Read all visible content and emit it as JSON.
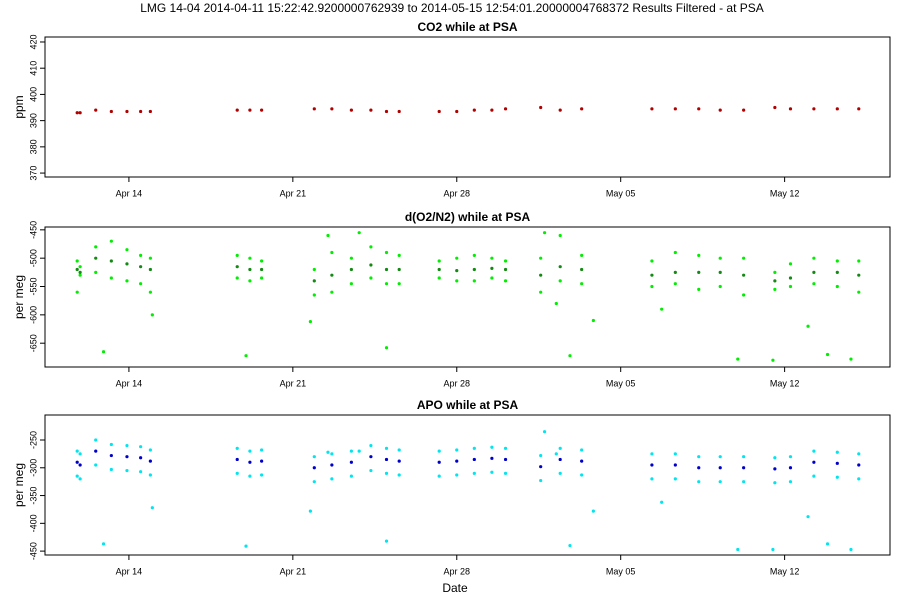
{
  "title": "LMG   14-04    2014-04-11 15:22:42.9200000762939 to 2014-05-15 12:54:01.20000004768372   Results Filtered - at PSA",
  "xlabel": "Date",
  "chart_data": [
    {
      "type": "scatter",
      "title": "CO2 while at PSA",
      "ylabel": "ppm",
      "xlim": [
        "2014-04-10T10:00",
        "2014-05-16T12:00"
      ],
      "xticks": [
        {
          "value": "2014-04-14T00:00",
          "label": "Apr 14"
        },
        {
          "value": "2014-04-21T00:00",
          "label": "Apr 21"
        },
        {
          "value": "2014-04-28T00:00",
          "label": "Apr 28"
        },
        {
          "value": "2014-05-05T00:00",
          "label": "May 05"
        },
        {
          "value": "2014-05-12T00:00",
          "label": "May 12"
        }
      ],
      "ylim": [
        368.5,
        421.9
      ],
      "yticks": [
        370,
        380,
        390,
        400,
        410,
        420
      ],
      "series": [
        {
          "color": "#b00000",
          "x": [
            "2014-04-11T19:00",
            "2014-04-11T22:00",
            "2014-04-12T14:00",
            "2014-04-13T06:00",
            "2014-04-13T22:00",
            "2014-04-14T12:00",
            "2014-04-14T22:00",
            "2014-04-18T15:00",
            "2014-04-19T04:00",
            "2014-04-19T16:00",
            "2014-04-21T22:00",
            "2014-04-22T16:00",
            "2014-04-23T12:00",
            "2014-04-24T08:00",
            "2014-04-25T00:00",
            "2014-04-25T13:00",
            "2014-04-27T06:00",
            "2014-04-28T00:00",
            "2014-04-28T18:00",
            "2014-04-29T12:00",
            "2014-04-30T02:00",
            "2014-05-01T14:00",
            "2014-05-02T10:00",
            "2014-05-03T08:00",
            "2014-05-06T08:00",
            "2014-05-07T08:00",
            "2014-05-08T08:00",
            "2014-05-09T06:00",
            "2014-05-10T06:00",
            "2014-05-11T14:00",
            "2014-05-12T06:00",
            "2014-05-13T06:00",
            "2014-05-14T06:00",
            "2014-05-15T04:00"
          ],
          "values": [
            393,
            393,
            394,
            393.5,
            393.5,
            393.5,
            393.5,
            394,
            394,
            394,
            394.5,
            394.5,
            394,
            394,
            393.5,
            393.5,
            393.5,
            393.5,
            394,
            394,
            394.5,
            395,
            394,
            394.5,
            394.5,
            394.5,
            394.5,
            394,
            394,
            395,
            394.5,
            394.5,
            394.5,
            394.5
          ]
        }
      ]
    },
    {
      "type": "scatter",
      "title": "d(O2/N2) while at PSA",
      "ylabel": "per meg",
      "xlim": [
        "2014-04-10T10:00",
        "2014-05-16T12:00"
      ],
      "xticks": [
        {
          "value": "2014-04-14T00:00",
          "label": "Apr 14"
        },
        {
          "value": "2014-04-21T00:00",
          "label": "Apr 21"
        },
        {
          "value": "2014-04-28T00:00",
          "label": "Apr 28"
        },
        {
          "value": "2014-05-05T00:00",
          "label": "May 05"
        },
        {
          "value": "2014-05-12T00:00",
          "label": "May 12"
        }
      ],
      "ylim": [
        -692,
        -445
      ],
      "yticks": [
        -450,
        -500,
        -550,
        -600,
        -650
      ],
      "series": [
        {
          "color": "#00ee00",
          "x": [
            "2014-04-11T19:00",
            "2014-04-11T22:00",
            "2014-04-12T14:00",
            "2014-04-13T06:00",
            "2014-04-13T22:00",
            "2014-04-14T12:00",
            "2014-04-14T22:00",
            "2014-04-18T15:00",
            "2014-04-19T04:00",
            "2014-04-19T16:00",
            "2014-04-21T22:00",
            "2014-04-22T16:00",
            "2014-04-23T12:00",
            "2014-04-24T08:00",
            "2014-04-25T00:00",
            "2014-04-25T13:00",
            "2014-04-27T06:00",
            "2014-04-28T00:00",
            "2014-04-28T18:00",
            "2014-04-29T12:00",
            "2014-04-30T02:00",
            "2014-05-01T14:00",
            "2014-05-02T10:00",
            "2014-05-03T08:00",
            "2014-05-06T08:00",
            "2014-05-07T08:00",
            "2014-05-08T08:00",
            "2014-05-09T06:00",
            "2014-05-10T06:00",
            "2014-05-11T14:00",
            "2014-05-12T06:00",
            "2014-05-13T06:00",
            "2014-05-14T06:00",
            "2014-05-15T04:00",
            "2014-04-11T19:00",
            "2014-04-11T22:00",
            "2014-04-12T14:00",
            "2014-04-13T06:00",
            "2014-04-13T22:00",
            "2014-04-14T12:00",
            "2014-04-14T22:00",
            "2014-04-18T15:00",
            "2014-04-19T04:00",
            "2014-04-19T16:00",
            "2014-04-21T22:00",
            "2014-04-22T16:00",
            "2014-04-23T12:00",
            "2014-04-24T08:00",
            "2014-04-25T00:00",
            "2014-04-25T13:00",
            "2014-04-27T06:00",
            "2014-04-28T00:00",
            "2014-04-28T18:00",
            "2014-04-29T12:00",
            "2014-04-30T02:00",
            "2014-05-01T14:00",
            "2014-05-02T10:00",
            "2014-05-03T08:00",
            "2014-05-06T08:00",
            "2014-05-07T08:00",
            "2014-05-08T08:00",
            "2014-05-09T06:00",
            "2014-05-10T06:00",
            "2014-05-11T14:00",
            "2014-05-12T06:00",
            "2014-05-13T06:00",
            "2014-05-14T06:00",
            "2014-05-15T04:00",
            "2014-04-12T22:00",
            "2014-04-15T00:00",
            "2014-04-19T00:00",
            "2014-04-21T18:00",
            "2014-04-22T12:00",
            "2014-04-23T20:00",
            "2014-04-25T00:00",
            "2014-05-01T18:00",
            "2014-05-02T06:00",
            "2014-05-02T20:00",
            "2014-05-03T20:00",
            "2014-05-06T18:00",
            "2014-05-10T00:00",
            "2014-05-11T12:00",
            "2014-05-13T00:00",
            "2014-05-13T20:00",
            "2014-05-14T20:00"
          ],
          "values": [
            -505,
            -515,
            -480,
            -470,
            -485,
            -495,
            -500,
            -495,
            -500,
            -505,
            -520,
            -490,
            -500,
            -480,
            -490,
            -495,
            -505,
            -500,
            -495,
            -500,
            -505,
            -500,
            -460,
            -495,
            -505,
            -490,
            -495,
            -500,
            -500,
            -525,
            -510,
            -500,
            -505,
            -505,
            -560,
            -530,
            -525,
            -535,
            -540,
            -545,
            -560,
            -535,
            -540,
            -535,
            -565,
            -560,
            -545,
            -535,
            -545,
            -545,
            -535,
            -540,
            -540,
            -535,
            -540,
            -560,
            -540,
            -545,
            -550,
            -545,
            -555,
            -550,
            -565,
            -555,
            -550,
            -545,
            -550,
            -560,
            -665,
            -600,
            -672,
            -612,
            -460,
            -455,
            -658,
            -455,
            -580,
            -672,
            -610,
            -590,
            -678,
            -680,
            -620,
            -670,
            -678
          ]
        },
        {
          "color": "#138a13",
          "x": [
            "2014-04-11T19:00",
            "2014-04-11T22:00",
            "2014-04-12T14:00",
            "2014-04-13T06:00",
            "2014-04-13T22:00",
            "2014-04-14T12:00",
            "2014-04-14T22:00",
            "2014-04-18T15:00",
            "2014-04-19T04:00",
            "2014-04-19T16:00",
            "2014-04-21T22:00",
            "2014-04-22T16:00",
            "2014-04-23T12:00",
            "2014-04-24T08:00",
            "2014-04-25T00:00",
            "2014-04-25T13:00",
            "2014-04-27T06:00",
            "2014-04-28T00:00",
            "2014-04-28T18:00",
            "2014-04-29T12:00",
            "2014-04-30T02:00",
            "2014-05-01T14:00",
            "2014-05-02T10:00",
            "2014-05-03T08:00",
            "2014-05-06T08:00",
            "2014-05-07T08:00",
            "2014-05-08T08:00",
            "2014-05-09T06:00",
            "2014-05-10T06:00",
            "2014-05-11T14:00",
            "2014-05-12T06:00",
            "2014-05-13T06:00",
            "2014-05-14T06:00",
            "2014-05-15T04:00"
          ],
          "values": [
            -520,
            -525,
            -500,
            -505,
            -510,
            -515,
            -520,
            -515,
            -520,
            -520,
            -540,
            -530,
            -520,
            -512,
            -520,
            -520,
            -520,
            -522,
            -520,
            -518,
            -520,
            -530,
            -515,
            -520,
            -530,
            -525,
            -525,
            -525,
            -530,
            -540,
            -535,
            -525,
            -525,
            -530
          ]
        }
      ]
    },
    {
      "type": "scatter",
      "title": "APO while at PSA",
      "ylabel": "per meg",
      "xlim": [
        "2014-04-10T10:00",
        "2014-05-16T12:00"
      ],
      "xticks": [
        {
          "value": "2014-04-14T00:00",
          "label": "Apr 14"
        },
        {
          "value": "2014-04-21T00:00",
          "label": "Apr 21"
        },
        {
          "value": "2014-04-28T00:00",
          "label": "Apr 28"
        },
        {
          "value": "2014-05-05T00:00",
          "label": "May 05"
        },
        {
          "value": "2014-05-12T00:00",
          "label": "May 12"
        }
      ],
      "ylim": [
        -457,
        -205
      ],
      "yticks": [
        -250,
        -300,
        -350,
        -400,
        -450
      ],
      "series": [
        {
          "color": "#00e5ee",
          "x": [
            "2014-04-11T19:00",
            "2014-04-11T22:00",
            "2014-04-12T14:00",
            "2014-04-13T06:00",
            "2014-04-13T22:00",
            "2014-04-14T12:00",
            "2014-04-14T22:00",
            "2014-04-18T15:00",
            "2014-04-19T04:00",
            "2014-04-19T16:00",
            "2014-04-21T22:00",
            "2014-04-22T16:00",
            "2014-04-23T12:00",
            "2014-04-24T08:00",
            "2014-04-25T00:00",
            "2014-04-25T13:00",
            "2014-04-27T06:00",
            "2014-04-28T00:00",
            "2014-04-28T18:00",
            "2014-04-29T12:00",
            "2014-04-30T02:00",
            "2014-05-01T14:00",
            "2014-05-02T10:00",
            "2014-05-03T08:00",
            "2014-05-06T08:00",
            "2014-05-07T08:00",
            "2014-05-08T08:00",
            "2014-05-09T06:00",
            "2014-05-10T06:00",
            "2014-05-11T14:00",
            "2014-05-12T06:00",
            "2014-05-13T06:00",
            "2014-05-14T06:00",
            "2014-05-15T04:00",
            "2014-04-11T19:00",
            "2014-04-11T22:00",
            "2014-04-12T14:00",
            "2014-04-13T06:00",
            "2014-04-13T22:00",
            "2014-04-14T12:00",
            "2014-04-14T22:00",
            "2014-04-18T15:00",
            "2014-04-19T04:00",
            "2014-04-19T16:00",
            "2014-04-21T22:00",
            "2014-04-22T16:00",
            "2014-04-23T12:00",
            "2014-04-24T08:00",
            "2014-04-25T00:00",
            "2014-04-25T13:00",
            "2014-04-27T06:00",
            "2014-04-28T00:00",
            "2014-04-28T18:00",
            "2014-04-29T12:00",
            "2014-04-30T02:00",
            "2014-05-01T14:00",
            "2014-05-02T10:00",
            "2014-05-03T08:00",
            "2014-05-06T08:00",
            "2014-05-07T08:00",
            "2014-05-08T08:00",
            "2014-05-09T06:00",
            "2014-05-10T06:00",
            "2014-05-11T14:00",
            "2014-05-12T06:00",
            "2014-05-13T06:00",
            "2014-05-14T06:00",
            "2014-05-15T04:00",
            "2014-04-12T22:00",
            "2014-04-15T00:00",
            "2014-04-19T00:00",
            "2014-04-21T18:00",
            "2014-04-22T12:00",
            "2014-04-23T20:00",
            "2014-04-25T00:00",
            "2014-05-01T18:00",
            "2014-05-02T06:00",
            "2014-05-02T20:00",
            "2014-05-03T20:00",
            "2014-05-06T18:00",
            "2014-05-10T00:00",
            "2014-05-11T12:00",
            "2014-05-13T00:00",
            "2014-05-13T20:00",
            "2014-05-14T20:00"
          ],
          "values": [
            -270,
            -275,
            -250,
            -258,
            -260,
            -262,
            -268,
            -265,
            -270,
            -268,
            -280,
            -275,
            -270,
            -260,
            -265,
            -268,
            -270,
            -268,
            -265,
            -263,
            -265,
            -278,
            -265,
            -268,
            -275,
            -275,
            -280,
            -280,
            -280,
            -282,
            -280,
            -270,
            -272,
            -275,
            -315,
            -320,
            -295,
            -303,
            -305,
            -307,
            -313,
            -310,
            -315,
            -313,
            -325,
            -320,
            -315,
            -305,
            -310,
            -313,
            -315,
            -313,
            -310,
            -308,
            -310,
            -323,
            -310,
            -313,
            -320,
            -320,
            -325,
            -325,
            -325,
            -327,
            -325,
            -315,
            -317,
            -320,
            -437,
            -372,
            -441,
            -378,
            -272,
            -270,
            -432,
            -235,
            -275,
            -440,
            -378,
            -362,
            -447,
            -447,
            -388,
            -437,
            -447
          ]
        },
        {
          "color": "#0000cd",
          "x": [
            "2014-04-11T19:00",
            "2014-04-11T22:00",
            "2014-04-12T14:00",
            "2014-04-13T06:00",
            "2014-04-13T22:00",
            "2014-04-14T12:00",
            "2014-04-14T22:00",
            "2014-04-18T15:00",
            "2014-04-19T04:00",
            "2014-04-19T16:00",
            "2014-04-21T22:00",
            "2014-04-22T16:00",
            "2014-04-23T12:00",
            "2014-04-24T08:00",
            "2014-04-25T00:00",
            "2014-04-25T13:00",
            "2014-04-27T06:00",
            "2014-04-28T00:00",
            "2014-04-28T18:00",
            "2014-04-29T12:00",
            "2014-04-30T02:00",
            "2014-05-01T14:00",
            "2014-05-02T10:00",
            "2014-05-03T08:00",
            "2014-05-06T08:00",
            "2014-05-07T08:00",
            "2014-05-08T08:00",
            "2014-05-09T06:00",
            "2014-05-10T06:00",
            "2014-05-11T14:00",
            "2014-05-12T06:00",
            "2014-05-13T06:00",
            "2014-05-14T06:00",
            "2014-05-15T04:00"
          ],
          "values": [
            -290,
            -295,
            -270,
            -278,
            -280,
            -282,
            -288,
            -285,
            -290,
            -288,
            -300,
            -295,
            -290,
            -280,
            -285,
            -288,
            -290,
            -288,
            -285,
            -283,
            -285,
            -298,
            -285,
            -288,
            -295,
            -295,
            -300,
            -300,
            -300,
            -302,
            -300,
            -290,
            -292,
            -295
          ]
        }
      ]
    }
  ]
}
